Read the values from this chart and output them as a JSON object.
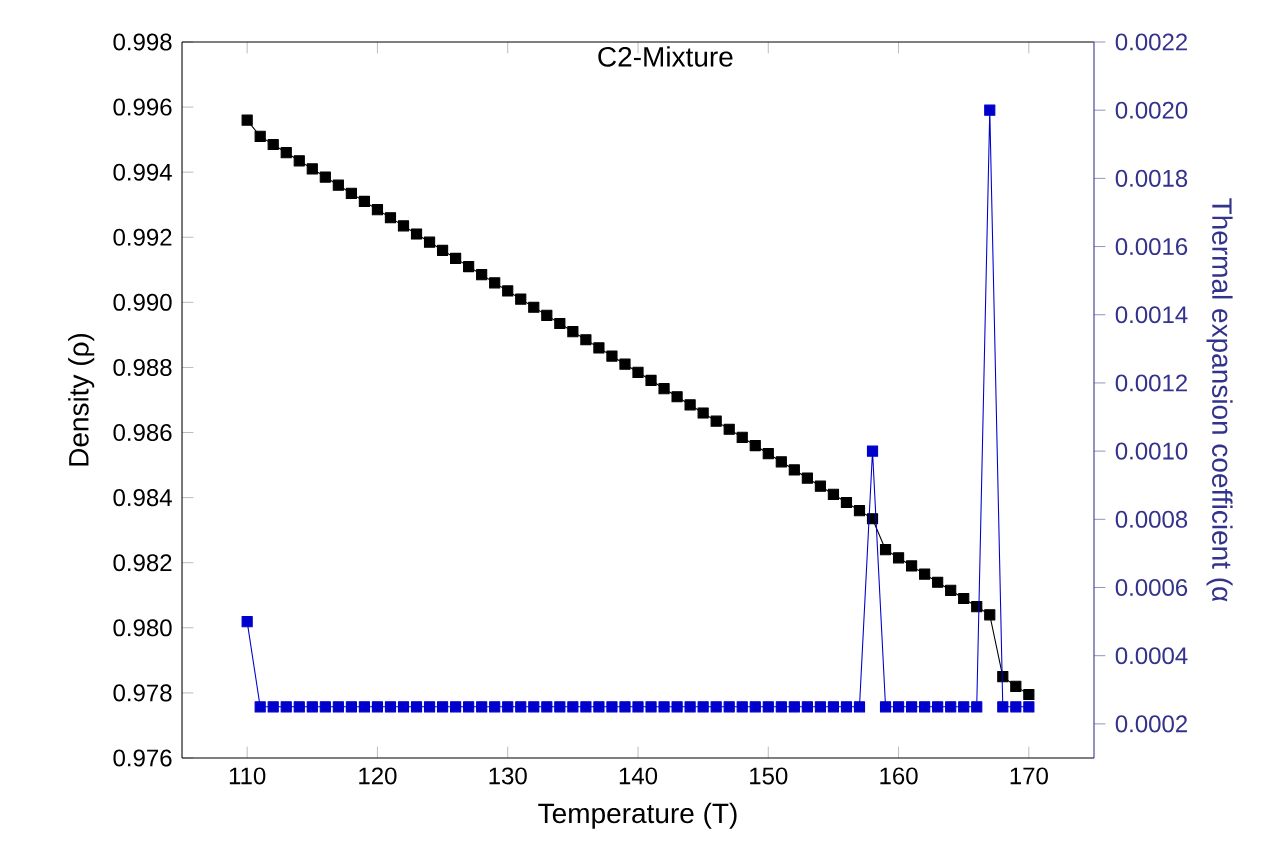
{
  "chart_data": {
    "type": "line",
    "title": "C2-Mixture",
    "xlabel": "Temperature (T)",
    "ylabel": "Density (ρ)",
    "y2label": "Thermal expansion coefficient (α",
    "x": [
      110,
      111,
      112,
      113,
      114,
      115,
      116,
      117,
      118,
      119,
      120,
      121,
      122,
      123,
      124,
      125,
      126,
      127,
      128,
      129,
      130,
      131,
      132,
      133,
      134,
      135,
      136,
      137,
      138,
      139,
      140,
      141,
      142,
      143,
      144,
      145,
      146,
      147,
      148,
      149,
      150,
      151,
      152,
      153,
      154,
      155,
      156,
      157,
      158,
      159,
      160,
      161,
      162,
      163,
      164,
      165,
      166,
      167,
      168,
      169,
      170
    ],
    "series": [
      {
        "color": "#000000",
        "values": [
          0.9956,
          0.9951,
          0.99485,
          0.9946,
          0.99435,
          0.9941,
          0.99385,
          0.9936,
          0.99335,
          0.9931,
          0.99285,
          0.9926,
          0.99235,
          0.9921,
          0.99185,
          0.9916,
          0.99135,
          0.9911,
          0.99085,
          0.9906,
          0.99035,
          0.9901,
          0.98985,
          0.9896,
          0.98935,
          0.9891,
          0.98885,
          0.9886,
          0.98835,
          0.9881,
          0.98785,
          0.9876,
          0.98735,
          0.9871,
          0.98685,
          0.9866,
          0.98635,
          0.9861,
          0.98585,
          0.9856,
          0.98535,
          0.9851,
          0.98485,
          0.9846,
          0.98435,
          0.9841,
          0.98385,
          0.9836,
          0.98335,
          0.9824,
          0.98215,
          0.9819,
          0.98165,
          0.9814,
          0.98115,
          0.9809,
          0.98065,
          0.9804,
          0.9785,
          0.9782,
          0.97795
        ]
      },
      {
        "color": "#0000cc",
        "axis": "y2",
        "values": [
          0.0005,
          0.00025,
          0.00025,
          0.00025,
          0.00025,
          0.00025,
          0.00025,
          0.00025,
          0.00025,
          0.00025,
          0.00025,
          0.00025,
          0.00025,
          0.00025,
          0.00025,
          0.00025,
          0.00025,
          0.00025,
          0.00025,
          0.00025,
          0.00025,
          0.00025,
          0.00025,
          0.00025,
          0.00025,
          0.00025,
          0.00025,
          0.00025,
          0.00025,
          0.00025,
          0.00025,
          0.00025,
          0.00025,
          0.00025,
          0.00025,
          0.00025,
          0.00025,
          0.00025,
          0.00025,
          0.00025,
          0.00025,
          0.00025,
          0.00025,
          0.00025,
          0.00025,
          0.00025,
          0.00025,
          0.00025,
          0.001,
          0.00025,
          0.00025,
          0.00025,
          0.00025,
          0.00025,
          0.00025,
          0.00025,
          0.00025,
          0.002,
          0.00025,
          0.00025,
          0.00025
        ]
      }
    ],
    "xlim": [
      105,
      175
    ],
    "xticks": [
      110,
      120,
      130,
      140,
      150,
      160,
      170
    ],
    "ylim": [
      0.976,
      0.998
    ],
    "yticks": [
      0.976,
      0.978,
      {
        "value": 0.98,
        "label": "0.980"
      },
      0.982,
      0.984,
      0.986,
      0.988,
      {
        "value": 0.99,
        "label": "0.990"
      },
      0.992,
      0.994,
      0.996,
      0.998
    ],
    "y2lim": [
      0.0001,
      0.0022
    ],
    "y2ticks": [
      0.0002,
      0.0004,
      0.0006,
      0.0008,
      {
        "value": 0.001,
        "label": "0.0010"
      },
      0.0012,
      0.0014,
      0.0016,
      0.0018,
      {
        "value": 0.002,
        "label": "0.0020"
      },
      0.0022
    ],
    "grid": false,
    "marker": "square",
    "line_style": "solid"
  }
}
